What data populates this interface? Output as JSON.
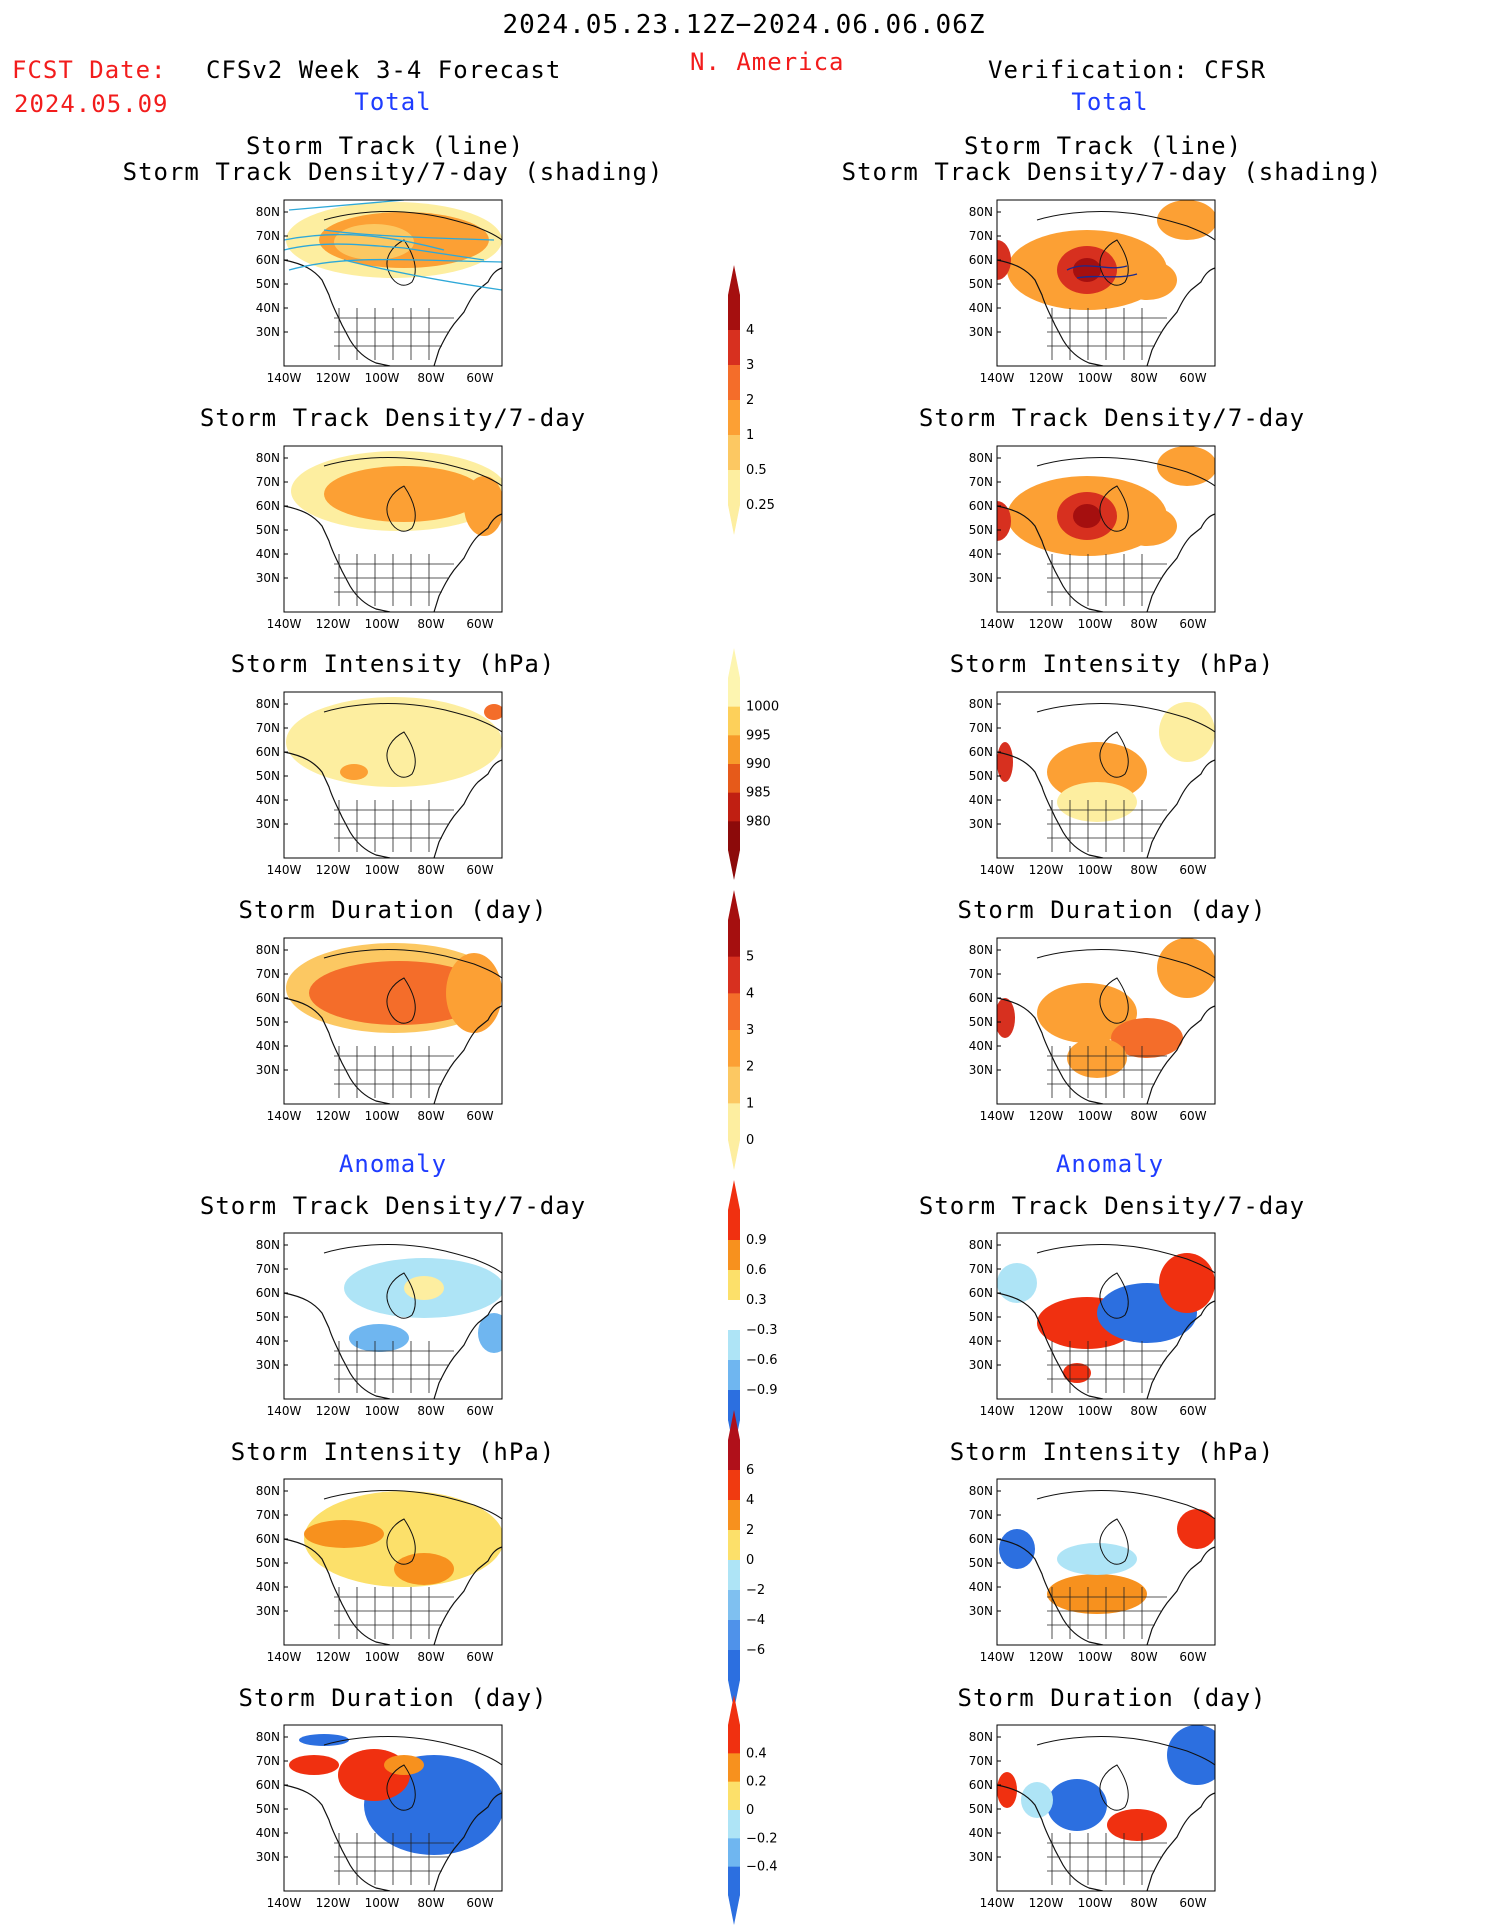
{
  "header": {
    "date_range": "2024.05.23.12Z−2024.06.06.06Z",
    "fcst_label": "FCST Date:",
    "fcst_date": "2024.05.09",
    "left_title": "CFSv2 Week 3-4 Forecast",
    "region": "N. America",
    "right_title": "Verification: CFSR",
    "left_section_total": "Total",
    "right_section_total": "Total",
    "left_section_anomaly": "Anomaly",
    "right_section_anomaly": "Anomaly"
  },
  "axes": {
    "lat_ticks": [
      "80N",
      "70N",
      "60N",
      "50N",
      "40N",
      "30N"
    ],
    "lon_ticks": [
      "140W",
      "120W",
      "100W",
      "80W",
      "60W"
    ]
  },
  "titles": {
    "track_line": "Storm Track (line)",
    "track_density_shading": "Storm Track Density/7-day (shading)",
    "track_density": "Storm Track Density/7-day",
    "intensity": "Storm Intensity (hPa)",
    "duration": "Storm Duration (day)"
  },
  "colorbars": {
    "density_total": {
      "labels": [
        "4",
        "3",
        "2",
        "1",
        "0.5",
        "0.25"
      ],
      "colors": [
        "#a50f0f",
        "#d7301f",
        "#f46d2a",
        "#fca034",
        "#fcc862",
        "#fdeea0"
      ]
    },
    "intensity_total": {
      "labels": [
        "1000",
        "995",
        "990",
        "985",
        "980"
      ],
      "colors": [
        "#fdf5b0",
        "#fdd05a",
        "#f79b2a",
        "#e65a1a",
        "#c01f12",
        "#8c0a0a"
      ]
    },
    "duration_total": {
      "labels": [
        "5",
        "4",
        "3",
        "2",
        "1",
        "0"
      ],
      "colors": [
        "#a50f0f",
        "#d7301f",
        "#f46d2a",
        "#fca034",
        "#fcc862",
        "#fdeea0"
      ]
    },
    "density_anom": {
      "labels": [
        "0.9",
        "0.6",
        "0.3",
        "−0.3",
        "−0.6",
        "−0.9"
      ],
      "colors": [
        "#f03010",
        "#f7911e",
        "#fce06a",
        "#ffffff",
        "#aee4f6",
        "#6fb6f0",
        "#2c6fe0"
      ]
    },
    "intensity_anom": {
      "labels": [
        "6",
        "4",
        "2",
        "0",
        "−2",
        "−4",
        "−6"
      ],
      "colors": [
        "#b0101a",
        "#f03a10",
        "#f7911e",
        "#fce06a",
        "#aee4f6",
        "#7fc0f0",
        "#4f92ea",
        "#2c6fe0"
      ]
    },
    "duration_anom": {
      "labels": [
        "0.4",
        "0.2",
        "0",
        "−0.2",
        "−0.4"
      ],
      "colors": [
        "#f03010",
        "#f7911e",
        "#fce06a",
        "#aee4f6",
        "#6fb6f0",
        "#2c6fe0"
      ]
    }
  }
}
